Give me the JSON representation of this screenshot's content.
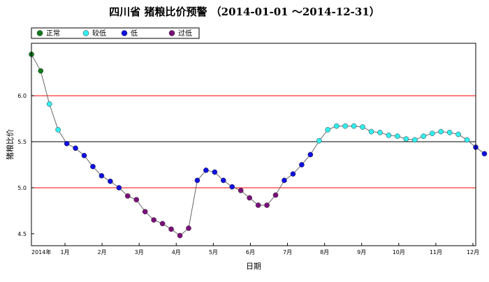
{
  "chart_data": {
    "type": "line",
    "title": "四川省 猪粮比价预警 （2014-01-01 ～2014-12-31）",
    "xlabel": "日期",
    "ylabel": "猪粮比价",
    "x_tick_labels": [
      "2014年",
      "1月",
      "2月",
      "3月",
      "4月",
      "5月",
      "6月",
      "7月",
      "8月",
      "9月",
      "10月",
      "11月",
      "12月"
    ],
    "y_ticks": [
      4.5,
      5.0,
      5.5,
      6.0
    ],
    "ylim": [
      4.37,
      6.57
    ],
    "xlim": [
      0,
      48
    ],
    "grid": false,
    "reference_lines": [
      {
        "value": 6.0,
        "color": "#ff0000"
      },
      {
        "value": 5.5,
        "color": "#000000"
      },
      {
        "value": 5.0,
        "color": "#ff0000"
      }
    ],
    "legend": {
      "placement": "top-left",
      "entries": [
        {
          "key": "normal",
          "label": "正常",
          "color": "#0f7a1a"
        },
        {
          "key": "lower",
          "label": "较低",
          "color": "#33eeee"
        },
        {
          "key": "low",
          "label": "低",
          "color": "#1010e0"
        },
        {
          "key": "verylow",
          "label": "过低",
          "color": "#7a0f7a"
        }
      ]
    },
    "series": [
      {
        "values": [
          {
            "x": 0.0,
            "y": 6.45,
            "level": "normal"
          },
          {
            "x": 1.0,
            "y": 6.27,
            "level": "normal"
          },
          {
            "x": 1.94,
            "y": 5.91,
            "level": "lower"
          },
          {
            "x": 2.88,
            "y": 5.63,
            "level": "lower"
          },
          {
            "x": 3.82,
            "y": 5.48,
            "level": "low"
          },
          {
            "x": 4.76,
            "y": 5.43,
            "level": "low"
          },
          {
            "x": 5.7,
            "y": 5.35,
            "level": "low"
          },
          {
            "x": 6.64,
            "y": 5.23,
            "level": "low"
          },
          {
            "x": 7.58,
            "y": 5.13,
            "level": "low"
          },
          {
            "x": 8.52,
            "y": 5.07,
            "level": "low"
          },
          {
            "x": 9.46,
            "y": 5.0,
            "level": "low"
          },
          {
            "x": 10.4,
            "y": 4.91,
            "level": "verylow"
          },
          {
            "x": 11.34,
            "y": 4.87,
            "level": "verylow"
          },
          {
            "x": 12.28,
            "y": 4.74,
            "level": "verylow"
          },
          {
            "x": 13.22,
            "y": 4.65,
            "level": "verylow"
          },
          {
            "x": 14.16,
            "y": 4.61,
            "level": "verylow"
          },
          {
            "x": 15.1,
            "y": 4.55,
            "level": "verylow"
          },
          {
            "x": 16.04,
            "y": 4.48,
            "level": "verylow"
          },
          {
            "x": 16.98,
            "y": 4.56,
            "level": "verylow"
          },
          {
            "x": 17.92,
            "y": 5.08,
            "level": "low"
          },
          {
            "x": 18.86,
            "y": 5.19,
            "level": "low"
          },
          {
            "x": 19.8,
            "y": 5.17,
            "level": "low"
          },
          {
            "x": 20.74,
            "y": 5.08,
            "level": "low"
          },
          {
            "x": 21.68,
            "y": 5.01,
            "level": "low"
          },
          {
            "x": 22.62,
            "y": 4.97,
            "level": "verylow"
          },
          {
            "x": 23.56,
            "y": 4.89,
            "level": "verylow"
          },
          {
            "x": 24.5,
            "y": 4.81,
            "level": "verylow"
          },
          {
            "x": 25.44,
            "y": 4.81,
            "level": "verylow"
          },
          {
            "x": 26.38,
            "y": 4.92,
            "level": "verylow"
          },
          {
            "x": 27.32,
            "y": 5.08,
            "level": "low"
          },
          {
            "x": 28.26,
            "y": 5.15,
            "level": "low"
          },
          {
            "x": 29.2,
            "y": 5.25,
            "level": "low"
          },
          {
            "x": 30.14,
            "y": 5.36,
            "level": "low"
          },
          {
            "x": 31.08,
            "y": 5.51,
            "level": "lower"
          },
          {
            "x": 32.02,
            "y": 5.63,
            "level": "lower"
          },
          {
            "x": 32.96,
            "y": 5.67,
            "level": "lower"
          },
          {
            "x": 33.9,
            "y": 5.67,
            "level": "lower"
          },
          {
            "x": 34.84,
            "y": 5.67,
            "level": "lower"
          },
          {
            "x": 35.78,
            "y": 5.66,
            "level": "lower"
          },
          {
            "x": 36.72,
            "y": 5.61,
            "level": "lower"
          },
          {
            "x": 37.66,
            "y": 5.6,
            "level": "lower"
          },
          {
            "x": 38.6,
            "y": 5.57,
            "level": "lower"
          },
          {
            "x": 39.54,
            "y": 5.56,
            "level": "lower"
          },
          {
            "x": 40.48,
            "y": 5.53,
            "level": "lower"
          },
          {
            "x": 41.42,
            "y": 5.52,
            "level": "lower"
          },
          {
            "x": 42.36,
            "y": 5.56,
            "level": "lower"
          },
          {
            "x": 43.3,
            "y": 5.59,
            "level": "lower"
          },
          {
            "x": 44.24,
            "y": 5.61,
            "level": "lower"
          },
          {
            "x": 45.18,
            "y": 5.6,
            "level": "lower"
          },
          {
            "x": 46.12,
            "y": 5.58,
            "level": "lower"
          },
          {
            "x": 47.06,
            "y": 5.52,
            "level": "lower"
          },
          {
            "x": 48.0,
            "y": 5.44,
            "level": "low"
          },
          {
            "x": 48.94,
            "y": 5.37,
            "level": "low"
          }
        ]
      }
    ]
  }
}
